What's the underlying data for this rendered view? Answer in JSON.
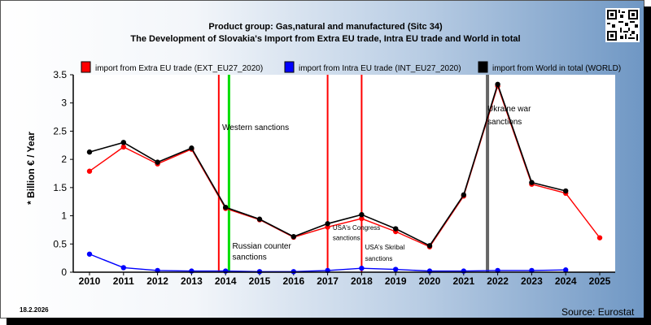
{
  "chart_data": {
    "type": "line",
    "title_line1": "Product group: Gas,natural and manufactured (Sitc 34)",
    "title_line2": "The Development of Slovakia's Import from Extra EU trade, Intra EU trade and World in total",
    "ylabel": "* Billion € / Year",
    "xlabel": "",
    "ylim": [
      0,
      3.5
    ],
    "yticks": [
      "0",
      "0.5",
      "1",
      "1.5",
      "2",
      "2.5",
      "3",
      "3.5"
    ],
    "x": [
      2010,
      2011,
      2012,
      2013,
      2014,
      2015,
      2016,
      2017,
      2018,
      2019,
      2020,
      2021,
      2022,
      2023,
      2024,
      2025
    ],
    "series": [
      {
        "name": "import from Extra EU trade (EXT_EU27_2020)",
        "color": "#ff0000",
        "values": [
          1.79,
          2.22,
          1.92,
          2.18,
          1.13,
          0.93,
          0.62,
          0.8,
          0.95,
          0.72,
          0.45,
          1.35,
          3.3,
          1.56,
          1.4,
          0.61
        ]
      },
      {
        "name": "import from Intra EU trade (INT_EU27_2020)",
        "color": "#0000ff",
        "values": [
          0.32,
          0.08,
          0.03,
          0.02,
          0.02,
          0.01,
          0.01,
          0.03,
          0.07,
          0.05,
          0.02,
          0.02,
          0.03,
          0.03,
          0.04,
          null
        ]
      },
      {
        "name": "import from World in total (WORLD)",
        "color": "#000000",
        "values": [
          2.13,
          2.3,
          1.95,
          2.2,
          1.15,
          0.94,
          0.63,
          0.86,
          1.02,
          0.77,
          0.47,
          1.37,
          3.33,
          1.59,
          1.44,
          null
        ]
      }
    ],
    "events": [
      {
        "year": 2013.8,
        "color": "#ff0000",
        "label": ""
      },
      {
        "year": 2014.1,
        "color": "#00dd00",
        "label": ""
      },
      {
        "year": 2017.0,
        "color": "#ff0000",
        "label": ""
      },
      {
        "year": 2018.0,
        "color": "#ff0000",
        "label": ""
      },
      {
        "year": 2021.7,
        "color": "#666666",
        "label": ""
      }
    ],
    "annotations": [
      {
        "text": "Western sanctions",
        "x": 2013.9,
        "y": 2.52,
        "size": 10
      },
      {
        "text": "Russian counter",
        "x": 2014.2,
        "y": 0.42,
        "size": 10
      },
      {
        "text": "sanctions",
        "x": 2014.2,
        "y": 0.22,
        "size": 10
      },
      {
        "text": "USA's Congress",
        "x": 2017.15,
        "y": 0.75,
        "size": 8
      },
      {
        "text": "sanctions",
        "x": 2017.15,
        "y": 0.57,
        "size": 8
      },
      {
        "text": "USA's Skribal",
        "x": 2018.1,
        "y": 0.4,
        "size": 8
      },
      {
        "text": "sanctions",
        "x": 2018.1,
        "y": 0.2,
        "size": 8
      },
      {
        "text": "Ukraine war",
        "x": 2021.7,
        "y": 2.85,
        "size": 10
      },
      {
        "text": "sanctions",
        "x": 2021.7,
        "y": 2.62,
        "size": 10
      }
    ],
    "legend_position": "top",
    "grid": false
  },
  "footer": {
    "date": "18.2.2026",
    "source": "Source: Eurostat"
  }
}
